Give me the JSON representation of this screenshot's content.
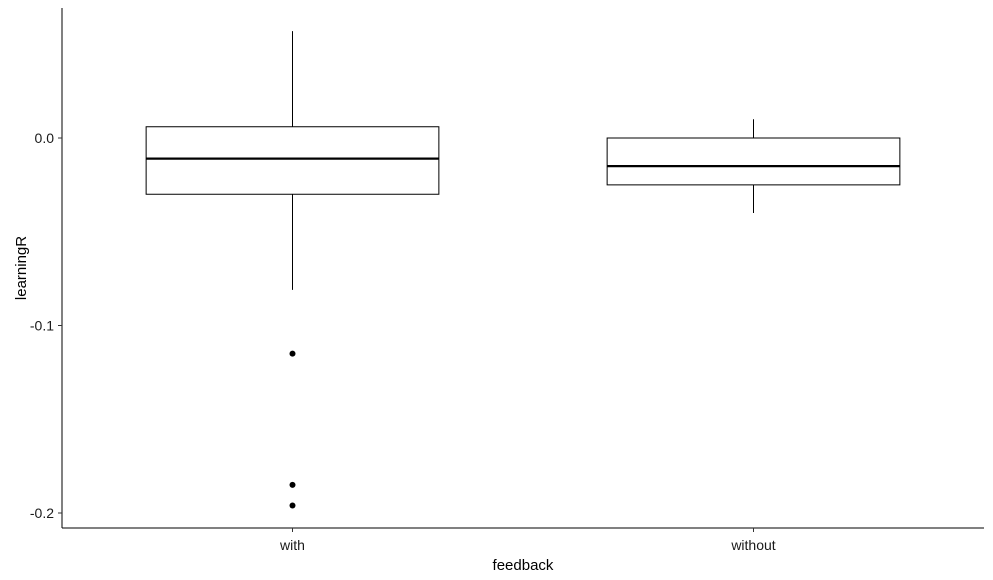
{
  "chart_data": {
    "type": "box",
    "title": "",
    "xlabel": "feedback",
    "ylabel": "learningR",
    "categories": [
      "with",
      "without"
    ],
    "y_ticks": [
      {
        "value": 0.0,
        "label": "0.0"
      },
      {
        "value": -0.1,
        "label": "-0.1"
      },
      {
        "value": -0.2,
        "label": "-0.2"
      }
    ],
    "ylim": [
      -0.208,
      0.07
    ],
    "grid": false,
    "legend": "none",
    "boxes": [
      {
        "category": "with",
        "whisker_low": -0.081,
        "q1": -0.03,
        "median": -0.011,
        "q3": 0.006,
        "whisker_high": 0.057,
        "outliers": [
          -0.115,
          -0.185,
          -0.196
        ]
      },
      {
        "category": "without",
        "whisker_low": -0.04,
        "q1": -0.025,
        "median": -0.015,
        "q3": 0.0,
        "whisker_high": 0.01,
        "outliers": []
      }
    ],
    "colors": {
      "box_fill": "#ffffff",
      "box_stroke": "#000000",
      "outlier": "#000000",
      "axis": "#000000"
    }
  }
}
